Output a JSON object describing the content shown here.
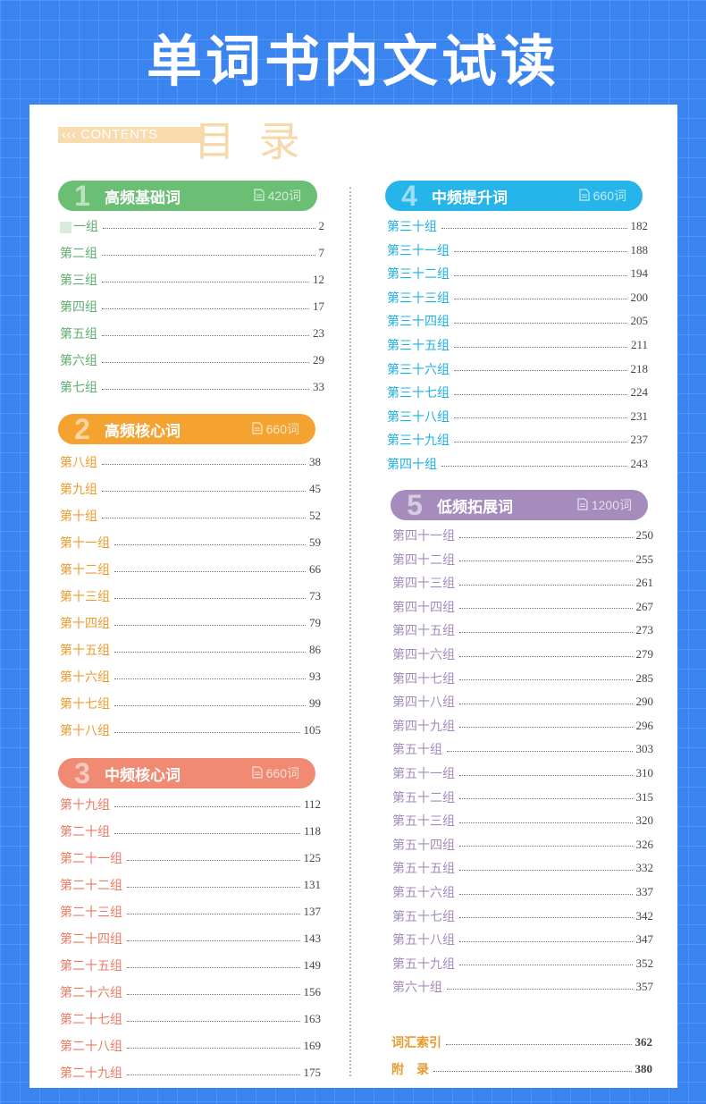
{
  "page_title": "单词书内文试读",
  "contents_tag": "‹‹‹ CONTENTS",
  "toc_title": "目 录",
  "colors": {
    "green": "#6abf75",
    "orange": "#f4a330",
    "salmon": "#f08a72",
    "cyan": "#25b5ea",
    "purple": "#a68bbd",
    "gold": "#e79a2f"
  },
  "sections": [
    {
      "num": "1",
      "title": "高频基础词",
      "count": "420词",
      "items": [
        {
          "label": "一组",
          "page": "2"
        },
        {
          "label": "第二组",
          "page": "7"
        },
        {
          "label": "第三组",
          "page": "12"
        },
        {
          "label": "第四组",
          "page": "17"
        },
        {
          "label": "第五组",
          "page": "23"
        },
        {
          "label": "第六组",
          "page": "29"
        },
        {
          "label": "第七组",
          "page": "33"
        }
      ]
    },
    {
      "num": "2",
      "title": "高频核心词",
      "count": "660词",
      "items": [
        {
          "label": "第八组",
          "page": "38"
        },
        {
          "label": "第九组",
          "page": "45"
        },
        {
          "label": "第十组",
          "page": "52"
        },
        {
          "label": "第十一组",
          "page": "59"
        },
        {
          "label": "第十二组",
          "page": "66"
        },
        {
          "label": "第十三组",
          "page": "73"
        },
        {
          "label": "第十四组",
          "page": "79"
        },
        {
          "label": "第十五组",
          "page": "86"
        },
        {
          "label": "第十六组",
          "page": "93"
        },
        {
          "label": "第十七组",
          "page": "99"
        },
        {
          "label": "第十八组",
          "page": "105"
        }
      ]
    },
    {
      "num": "3",
      "title": "中频核心词",
      "count": "660词",
      "items": [
        {
          "label": "第十九组",
          "page": "112"
        },
        {
          "label": "第二十组",
          "page": "118"
        },
        {
          "label": "第二十一组",
          "page": "125"
        },
        {
          "label": "第二十二组",
          "page": "131"
        },
        {
          "label": "第二十三组",
          "page": "137"
        },
        {
          "label": "第二十四组",
          "page": "143"
        },
        {
          "label": "第二十五组",
          "page": "149"
        },
        {
          "label": "第二十六组",
          "page": "156"
        },
        {
          "label": "第二十七组",
          "page": "163"
        },
        {
          "label": "第二十八组",
          "page": "169"
        },
        {
          "label": "第二十九组",
          "page": "175"
        }
      ]
    },
    {
      "num": "4",
      "title": "中频提升词",
      "count": "660词",
      "items": [
        {
          "label": "第三十组",
          "page": "182"
        },
        {
          "label": "第三十一组",
          "page": "188"
        },
        {
          "label": "第三十二组",
          "page": "194"
        },
        {
          "label": "第三十三组",
          "page": "200"
        },
        {
          "label": "第三十四组",
          "page": "205"
        },
        {
          "label": "第三十五组",
          "page": "211"
        },
        {
          "label": "第三十六组",
          "page": "218"
        },
        {
          "label": "第三十七组",
          "page": "224"
        },
        {
          "label": "第三十八组",
          "page": "231"
        },
        {
          "label": "第三十九组",
          "page": "237"
        },
        {
          "label": "第四十组",
          "page": "243"
        }
      ]
    },
    {
      "num": "5",
      "title": "低频拓展词",
      "count": "1200词",
      "items": [
        {
          "label": "第四十一组",
          "page": "250"
        },
        {
          "label": "第四十二组",
          "page": "255"
        },
        {
          "label": "第四十三组",
          "page": "261"
        },
        {
          "label": "第四十四组",
          "page": "267"
        },
        {
          "label": "第四十五组",
          "page": "273"
        },
        {
          "label": "第四十六组",
          "page": "279"
        },
        {
          "label": "第四十七组",
          "page": "285"
        },
        {
          "label": "第四十八组",
          "page": "290"
        },
        {
          "label": "第四十九组",
          "page": "296"
        },
        {
          "label": "第五十组",
          "page": "303"
        },
        {
          "label": "第五十一组",
          "page": "310"
        },
        {
          "label": "第五十二组",
          "page": "315"
        },
        {
          "label": "第五十三组",
          "page": "320"
        },
        {
          "label": "第五十四组",
          "page": "326"
        },
        {
          "label": "第五十五组",
          "page": "332"
        },
        {
          "label": "第五十六组",
          "page": "337"
        },
        {
          "label": "第五十七组",
          "page": "342"
        },
        {
          "label": "第五十八组",
          "page": "347"
        },
        {
          "label": "第五十九组",
          "page": "352"
        },
        {
          "label": "第六十组",
          "page": "357"
        }
      ]
    }
  ],
  "extras": [
    {
      "label": "词汇索引",
      "page": "362"
    },
    {
      "label": "附　录",
      "page": "380"
    }
  ]
}
